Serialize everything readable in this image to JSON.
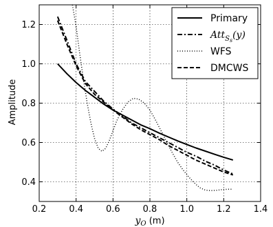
{
  "chart_data": {
    "type": "line",
    "title": "",
    "xlabel_var": "y",
    "xlabel_sub": "O",
    "xlabel_unit": " (m)",
    "ylabel": "Amplitude",
    "xlim": [
      0.2,
      1.4
    ],
    "ylim": [
      0.3,
      1.3
    ],
    "xticks": [
      "0.2",
      "0.4",
      "0.6",
      "0.8",
      "1.0",
      "1.2",
      "1.4"
    ],
    "yticks": [
      "0.4",
      "0.6",
      "0.8",
      "1.0",
      "1.2"
    ],
    "grid": true,
    "legend_position": "top-right",
    "series": [
      {
        "name": "Primary",
        "style": "solid",
        "x": [
          0.3,
          0.35,
          0.4,
          0.45,
          0.5,
          0.55,
          0.6,
          0.65,
          0.7,
          0.75,
          0.8,
          0.85,
          0.9,
          0.95,
          1.0,
          1.05,
          1.1,
          1.15,
          1.2,
          1.25
        ],
        "y": [
          1.0,
          0.95,
          0.905,
          0.865,
          0.83,
          0.795,
          0.765,
          0.74,
          0.715,
          0.69,
          0.67,
          0.648,
          0.628,
          0.608,
          0.59,
          0.572,
          0.556,
          0.54,
          0.525,
          0.511
        ]
      },
      {
        "name_var": "Att",
        "name_sub": "S",
        "name_subsub": "s",
        "name_arg": "(y)",
        "style": "dashdot",
        "x": [
          0.3,
          0.35,
          0.4,
          0.45,
          0.5,
          0.55,
          0.6,
          0.65,
          0.7,
          0.75,
          0.8,
          0.85,
          0.9,
          0.95,
          1.0,
          1.05,
          1.1,
          1.15,
          1.2,
          1.25
        ],
        "y": [
          1.24,
          1.12,
          1.0,
          0.91,
          0.86,
          0.81,
          0.77,
          0.735,
          0.7,
          0.675,
          0.65,
          0.625,
          0.6,
          0.575,
          0.55,
          0.53,
          0.505,
          0.485,
          0.46,
          0.44
        ]
      },
      {
        "name": "WFS",
        "style": "dotted",
        "x": [
          0.38,
          0.4,
          0.42,
          0.44,
          0.46,
          0.48,
          0.5,
          0.52,
          0.54,
          0.56,
          0.58,
          0.6,
          0.62,
          0.65,
          0.68,
          0.71,
          0.74,
          0.77,
          0.8,
          0.83,
          0.86,
          0.89,
          0.92,
          0.95,
          0.98,
          1.01,
          1.04,
          1.07,
          1.1,
          1.13,
          1.16,
          1.19,
          1.22,
          1.25
        ],
        "y": [
          1.3,
          1.19,
          1.05,
          0.92,
          0.8,
          0.7,
          0.62,
          0.57,
          0.555,
          0.57,
          0.61,
          0.66,
          0.71,
          0.765,
          0.805,
          0.825,
          0.82,
          0.8,
          0.765,
          0.715,
          0.66,
          0.605,
          0.55,
          0.5,
          0.46,
          0.425,
          0.395,
          0.37,
          0.358,
          0.355,
          0.357,
          0.36,
          0.362,
          0.362
        ]
      },
      {
        "name": "DMCWS",
        "style": "dashed",
        "x": [
          0.3,
          0.35,
          0.4,
          0.45,
          0.5,
          0.55,
          0.6,
          0.65,
          0.7,
          0.75,
          0.8,
          0.85,
          0.9,
          0.95,
          1.0,
          1.05,
          1.1,
          1.15,
          1.2,
          1.25
        ],
        "y": [
          1.22,
          1.1,
          0.99,
          0.9,
          0.845,
          0.805,
          0.765,
          0.73,
          0.695,
          0.665,
          0.64,
          0.615,
          0.585,
          0.56,
          0.535,
          0.51,
          0.49,
          0.47,
          0.45,
          0.435
        ]
      }
    ]
  }
}
